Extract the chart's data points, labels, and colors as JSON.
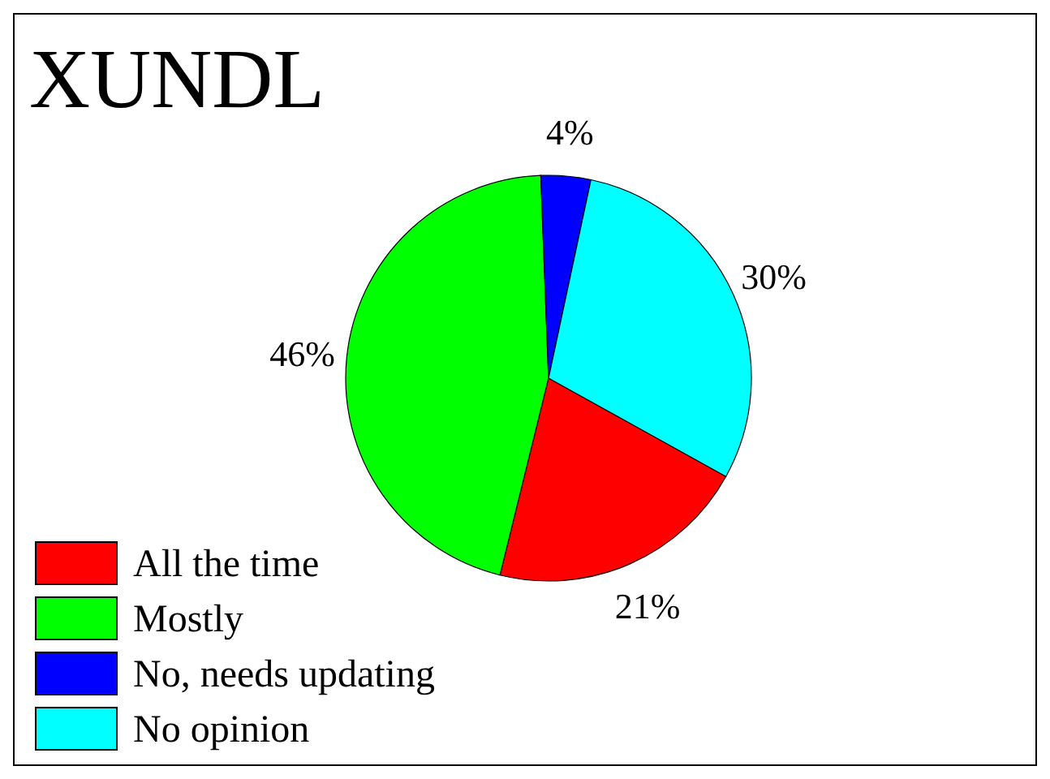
{
  "chart_data": {
    "type": "pie",
    "title": "XUNDL",
    "categories": [
      "All the time",
      "Mostly",
      "No, needs updating",
      "No opinion"
    ],
    "values": [
      21,
      46,
      4,
      30
    ],
    "colors": [
      "#ff0000",
      "#00ff00",
      "#0000ff",
      "#00ffff"
    ],
    "value_labels": [
      "21%",
      "46%",
      "4%",
      "30%"
    ],
    "legend": "bottom left"
  }
}
